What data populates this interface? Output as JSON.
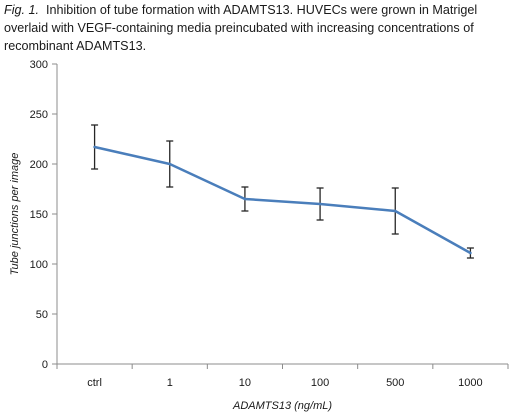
{
  "caption": {
    "lead": "Fig. 1.",
    "text": "Inhibition of tube formation with ADAMTS13.  HUVECs were grown in Matrigel overlaid with VEGF-containing media preincubated with increasing concentrations of recombinant ADAMTS13."
  },
  "chart_data": {
    "type": "line",
    "title": "",
    "xlabel": "ADAMTS13 (ng/mL)",
    "ylabel": "Tube junctions per image",
    "categories": [
      "ctrl",
      "1",
      "10",
      "100",
      "500",
      "1000"
    ],
    "values": [
      217,
      200,
      165,
      160,
      153,
      111
    ],
    "error": [
      22,
      23,
      12,
      16,
      23,
      5
    ],
    "ylim": [
      0,
      300
    ],
    "yticks": [
      0,
      50,
      100,
      150,
      200,
      250,
      300
    ],
    "grid": false,
    "legend": "none",
    "line_color": "#4a7ebb",
    "error_color": "#262626"
  }
}
